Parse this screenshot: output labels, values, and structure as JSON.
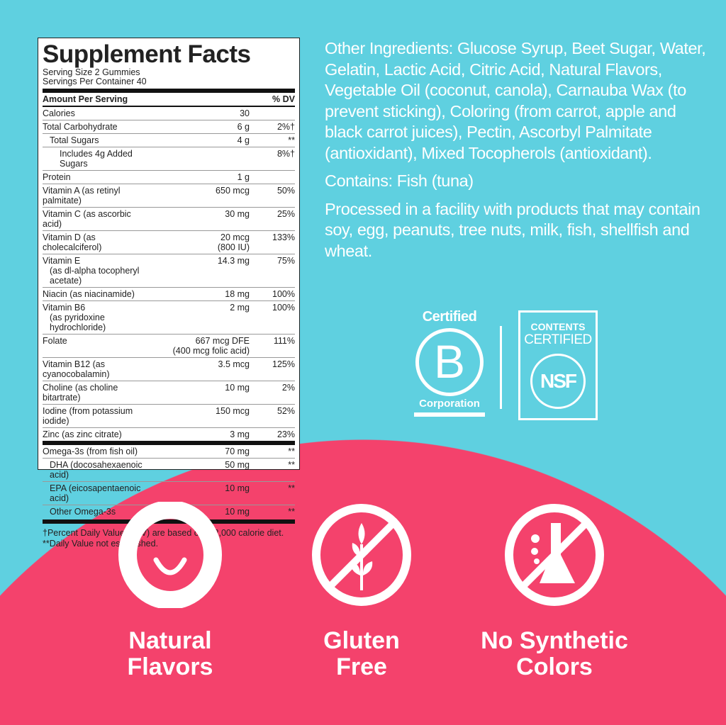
{
  "facts": {
    "title": "Supplement Facts",
    "serving_size": "Serving Size 2 Gummies",
    "servings_per_container": "Servings Per Container 40",
    "header": {
      "amount": "Amount Per Serving",
      "dv": "% DV"
    },
    "rows": [
      {
        "name": "Calories",
        "amount": "30",
        "dv": ""
      },
      {
        "name": "Total Carbohydrate",
        "amount": "6 g",
        "dv": "2%†"
      },
      {
        "name": "Total Sugars",
        "amount": "4 g",
        "dv": "**"
      },
      {
        "name": "Includes 4g Added Sugars",
        "amount": "",
        "dv": "8%†"
      },
      {
        "name": "Protein",
        "amount": "1 g",
        "dv": ""
      },
      {
        "name": "Vitamin A (as retinyl palmitate)",
        "amount": "650 mcg",
        "dv": "50%"
      },
      {
        "name": "Vitamin C (as ascorbic acid)",
        "amount": "30 mg",
        "dv": "25%"
      },
      {
        "name": "Vitamin D (as cholecalciferol)",
        "amount": "20 mcg",
        "amount2": "(800 IU)",
        "dv": "133%"
      },
      {
        "name": "Vitamin E",
        "sub": "(as dl-alpha tocopheryl acetate)",
        "amount": "14.3 mg",
        "dv": "75%"
      },
      {
        "name": "Niacin (as niacinamide)",
        "amount": "18 mg",
        "dv": "100%"
      },
      {
        "name": "Vitamin B6",
        "sub": "(as pyridoxine hydrochloride)",
        "amount": "2 mg",
        "dv": "100%"
      },
      {
        "name": "Folate",
        "amount": "667 mcg DFE",
        "amount2": "(400 mcg folic acid)",
        "dv": "111%"
      },
      {
        "name": "Vitamin B12 (as cyanocobalamin)",
        "amount": "3.5 mcg",
        "dv": "125%"
      },
      {
        "name": "Choline (as choline bitartrate)",
        "amount": "10 mg",
        "dv": "2%"
      },
      {
        "name": "Iodine (from potassium iodide)",
        "amount": "150 mcg",
        "dv": "52%"
      },
      {
        "name": "Zinc (as zinc citrate)",
        "amount": "3 mg",
        "dv": "23%"
      }
    ],
    "omega_rows": [
      {
        "name": "Omega-3s (from fish oil)",
        "amount": "70 mg",
        "dv": "**"
      },
      {
        "name": "DHA (docosahexaenoic acid)",
        "amount": "50 mg",
        "dv": "**"
      },
      {
        "name": "EPA (eicosapentaenoic acid)",
        "amount": "10 mg",
        "dv": "**"
      },
      {
        "name": "Other Omega-3s",
        "amount": "10 mg",
        "dv": "**"
      }
    ],
    "footnote1": "†Percent Daily Values (DV) are based on a 2,000 calorie diet.",
    "footnote2": "**Daily Value not established."
  },
  "info": {
    "ingredients": "Other Ingredients: Glucose Syrup, Beet Sugar, Water, Gelatin, Lactic Acid, Citric Acid, Natural Flavors, Vegetable Oil (coconut, canola), Carnauba Wax (to prevent sticking), Coloring (from carrot, apple and black carrot juices), Pectin, Ascorbyl Palmitate (antioxidant), Mixed Tocopherols (antioxidant).",
    "contains": "Contains: Fish (tuna)",
    "facility": "Processed in a facility with products that may contain soy, egg, peanuts, tree nuts, milk, fish, shellfish and wheat."
  },
  "certs": {
    "bcorp": {
      "top": "Certified",
      "letter": "B",
      "bottom": "Corporation"
    },
    "nsf": {
      "line1": "CONTENTS",
      "line2": "CERTIFIED",
      "mark": "NSF"
    }
  },
  "features": [
    {
      "icon": "smile-icon",
      "line1": "Natural",
      "line2": "Flavors"
    },
    {
      "icon": "no-wheat-icon",
      "line1": "Gluten",
      "line2": "Free"
    },
    {
      "icon": "no-flask-icon",
      "line1": "No Synthetic",
      "line2": "Colors"
    }
  ],
  "colors": {
    "background": "#5fd0e0",
    "accent": "#f4426c",
    "text": "#ffffff"
  }
}
